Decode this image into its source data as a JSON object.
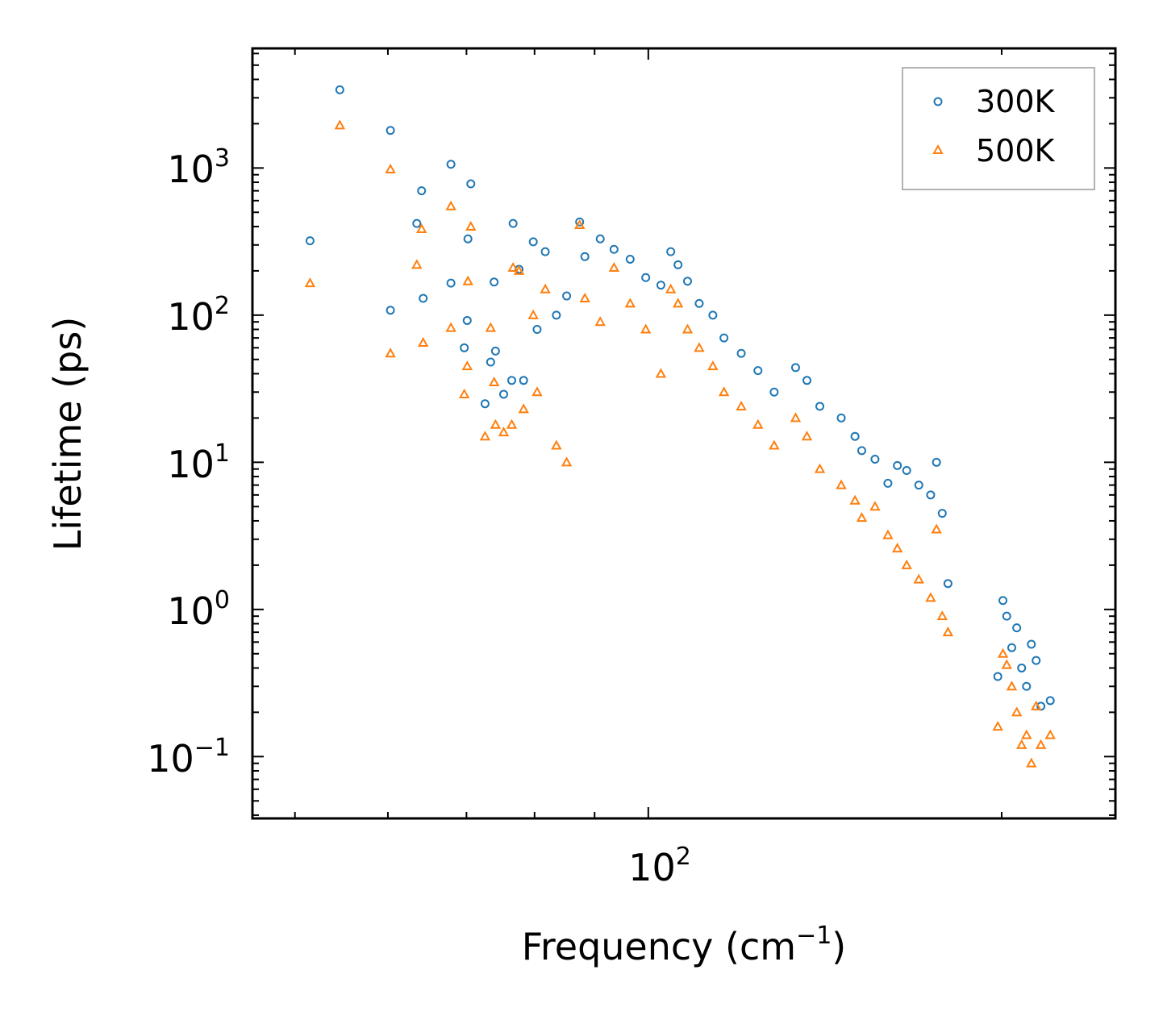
{
  "chart_data": {
    "type": "scatter",
    "x_scale": "log",
    "y_scale": "log",
    "xlim": [
      46,
      250
    ],
    "ylim": [
      0.038,
      6500
    ],
    "xlabel": "Frequency (cm",
    "xlabel_sup": "−1",
    "xlabel_end": ")",
    "ylabel": "Lifetime (ps)",
    "x_tick_labels": [
      {
        "value": 100,
        "base": "10",
        "exp": "2"
      }
    ],
    "y_tick_labels": [
      {
        "value": 0.1,
        "base": "10",
        "exp": "−1"
      },
      {
        "value": 1,
        "base": "10",
        "exp": "0"
      },
      {
        "value": 10,
        "base": "10",
        "exp": "1"
      },
      {
        "value": 100,
        "base": "10",
        "exp": "2"
      },
      {
        "value": 1000,
        "base": "10",
        "exp": "3"
      }
    ],
    "legend": {
      "placement": "top-right"
    },
    "series": [
      {
        "name": "300K",
        "color": "#1f77b4",
        "marker": "circle",
        "points": [
          [
            51.5,
            320
          ],
          [
            54.6,
            3400
          ],
          [
            60.3,
            1800
          ],
          [
            60.3,
            108
          ],
          [
            63.5,
            420
          ],
          [
            64.1,
            700
          ],
          [
            64.3,
            130
          ],
          [
            67.9,
            1060
          ],
          [
            67.9,
            165
          ],
          [
            70.6,
            780
          ],
          [
            70.2,
            330
          ],
          [
            70.1,
            92
          ],
          [
            69.7,
            60
          ],
          [
            72.6,
            25
          ],
          [
            73.4,
            48
          ],
          [
            73.9,
            168
          ],
          [
            74.1,
            57
          ],
          [
            75.3,
            29
          ],
          [
            76.7,
            420
          ],
          [
            76.5,
            36
          ],
          [
            77.6,
            205
          ],
          [
            78.3,
            36
          ],
          [
            79.8,
            315
          ],
          [
            80.4,
            80
          ],
          [
            81.7,
            270
          ],
          [
            83.5,
            100
          ],
          [
            85.2,
            135
          ],
          [
            87.4,
            430
          ],
          [
            88.3,
            250
          ],
          [
            91.0,
            330
          ],
          [
            93.5,
            280
          ],
          [
            96.5,
            240
          ],
          [
            99.5,
            180
          ],
          [
            102.5,
            160
          ],
          [
            104.5,
            270
          ],
          [
            106.0,
            220
          ],
          [
            108.0,
            170
          ],
          [
            110.5,
            120
          ],
          [
            113.5,
            100
          ],
          [
            116.0,
            70
          ],
          [
            120.0,
            55
          ],
          [
            124.0,
            42
          ],
          [
            128.0,
            30
          ],
          [
            133.5,
            44
          ],
          [
            136.5,
            36
          ],
          [
            140.0,
            24
          ],
          [
            146.0,
            20
          ],
          [
            150.0,
            15
          ],
          [
            152.0,
            12
          ],
          [
            156.0,
            10.5
          ],
          [
            160.0,
            7.2
          ],
          [
            163.0,
            9.5
          ],
          [
            166.0,
            8.8
          ],
          [
            170.0,
            7.0
          ],
          [
            174.0,
            6.0
          ],
          [
            176.0,
            10.0
          ],
          [
            178.0,
            4.5
          ],
          [
            180.0,
            1.5
          ],
          [
            198.5,
            0.35
          ],
          [
            200.5,
            1.15
          ],
          [
            202.0,
            0.9
          ],
          [
            204.0,
            0.55
          ],
          [
            206.0,
            0.75
          ],
          [
            208.0,
            0.4
          ],
          [
            210.0,
            0.3
          ],
          [
            212.0,
            0.58
          ],
          [
            214.0,
            0.45
          ],
          [
            216.0,
            0.22
          ],
          [
            220.0,
            0.24
          ]
        ]
      },
      {
        "name": "500K",
        "color": "#ff7f0e",
        "marker": "triangle",
        "points": [
          [
            51.5,
            165
          ],
          [
            54.6,
            1950
          ],
          [
            60.3,
            980
          ],
          [
            60.3,
            55
          ],
          [
            63.5,
            220
          ],
          [
            64.1,
            385
          ],
          [
            64.3,
            65
          ],
          [
            67.9,
            550
          ],
          [
            67.9,
            82
          ],
          [
            70.6,
            400
          ],
          [
            70.2,
            170
          ],
          [
            70.1,
            45
          ],
          [
            69.7,
            29
          ],
          [
            72.6,
            15
          ],
          [
            73.4,
            82
          ],
          [
            73.9,
            35
          ],
          [
            74.1,
            18
          ],
          [
            75.3,
            16
          ],
          [
            76.7,
            210
          ],
          [
            76.5,
            18
          ],
          [
            77.6,
            200
          ],
          [
            78.3,
            23
          ],
          [
            79.8,
            100
          ],
          [
            80.4,
            30
          ],
          [
            81.7,
            150
          ],
          [
            83.5,
            13
          ],
          [
            85.2,
            10
          ],
          [
            87.4,
            410
          ],
          [
            88.3,
            130
          ],
          [
            91.0,
            90
          ],
          [
            93.5,
            210
          ],
          [
            96.5,
            120
          ],
          [
            99.5,
            80
          ],
          [
            102.5,
            40
          ],
          [
            104.5,
            150
          ],
          [
            106.0,
            120
          ],
          [
            108.0,
            80
          ],
          [
            110.5,
            60
          ],
          [
            113.5,
            45
          ],
          [
            116.0,
            30
          ],
          [
            120.0,
            24
          ],
          [
            124.0,
            18
          ],
          [
            128.0,
            13
          ],
          [
            133.5,
            20
          ],
          [
            136.5,
            15
          ],
          [
            140.0,
            9.0
          ],
          [
            146.0,
            7.0
          ],
          [
            150.0,
            5.5
          ],
          [
            152.0,
            4.2
          ],
          [
            156.0,
            5.0
          ],
          [
            160.0,
            3.2
          ],
          [
            163.0,
            2.6
          ],
          [
            166.0,
            2.0
          ],
          [
            170.0,
            1.6
          ],
          [
            174.0,
            1.2
          ],
          [
            176.0,
            3.5
          ],
          [
            178.0,
            0.9
          ],
          [
            180.0,
            0.7
          ],
          [
            198.5,
            0.16
          ],
          [
            200.5,
            0.5
          ],
          [
            202.0,
            0.42
          ],
          [
            204.0,
            0.3
          ],
          [
            206.0,
            0.2
          ],
          [
            208.0,
            0.12
          ],
          [
            210.0,
            0.14
          ],
          [
            212.0,
            0.09
          ],
          [
            214.0,
            0.22
          ],
          [
            216.0,
            0.12
          ],
          [
            220.0,
            0.14
          ]
        ]
      }
    ]
  }
}
